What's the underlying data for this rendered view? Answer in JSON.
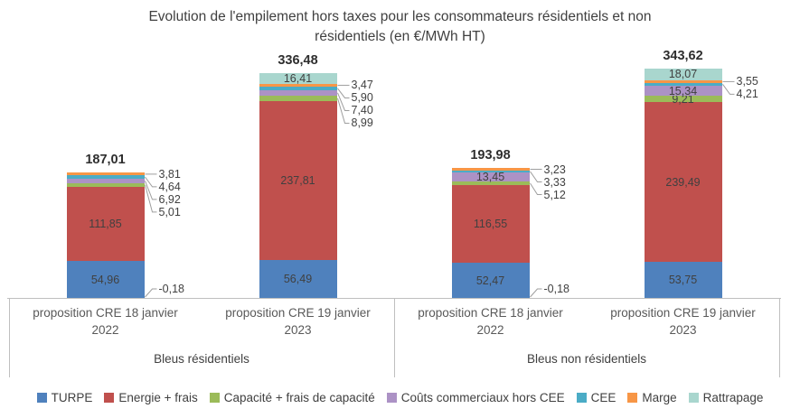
{
  "title": {
    "line1": "Evolution de l'empilement hors taxes pour les consommateurs résidentiels et non",
    "line2": "résidentiels (en €/MWh HT)"
  },
  "chart_data": {
    "type": "bar",
    "stacked": true,
    "unit": "€/MWh HT",
    "grid": false,
    "legend_position": "bottom",
    "decimal_separator": ",",
    "categories": [
      "proposition CRE 18 janvier 2022",
      "proposition CRE 19 janvier 2023",
      "proposition CRE 18 janvier 2022",
      "proposition CRE 19 janvier 2023"
    ],
    "groups": [
      {
        "label": "Bleus résidentiels",
        "category_indexes": [
          0,
          1
        ]
      },
      {
        "label": "Bleus non résidentiels",
        "category_indexes": [
          2,
          3
        ]
      }
    ],
    "series": [
      {
        "name": "TURPE",
        "color": "#4F81BD",
        "values": [
          54.96,
          56.49,
          52.47,
          53.75
        ],
        "label_placement": [
          "inside",
          "inside",
          "inside",
          "inside"
        ]
      },
      {
        "name": "Energie + frais",
        "color": "#C0504D",
        "values": [
          111.85,
          237.81,
          116.55,
          239.49
        ],
        "label_placement": [
          "inside",
          "inside",
          "inside",
          "inside"
        ]
      },
      {
        "name": "Capacité + frais de capacité",
        "color": "#9BBB59",
        "values": [
          5.01,
          8.99,
          5.12,
          9.21
        ],
        "label_placement": [
          "callout",
          "callout",
          "callout",
          "inside"
        ]
      },
      {
        "name": "Coûts commerciaux hors CEE",
        "color": "#AC92C5",
        "values": [
          6.92,
          7.4,
          13.45,
          15.34
        ],
        "label_placement": [
          "callout",
          "callout",
          "inside",
          "inside"
        ]
      },
      {
        "name": "CEE",
        "color": "#4BACC6",
        "values": [
          4.64,
          5.9,
          3.33,
          4.21
        ],
        "label_placement": [
          "callout",
          "callout",
          "callout",
          "callout"
        ]
      },
      {
        "name": "Marge",
        "color": "#F79646",
        "values": [
          3.81,
          3.47,
          3.23,
          3.55
        ],
        "label_placement": [
          "callout",
          "callout",
          "callout",
          "callout"
        ]
      },
      {
        "name": "Rattrapage",
        "color": "#A9D6CE",
        "values": [
          -0.18,
          16.41,
          -0.18,
          18.07
        ],
        "label_placement": [
          "callout",
          "inside",
          "callout",
          "inside"
        ]
      }
    ],
    "totals_display": [
      "187,01",
      "336,48",
      "193,98",
      "343,62"
    ]
  }
}
